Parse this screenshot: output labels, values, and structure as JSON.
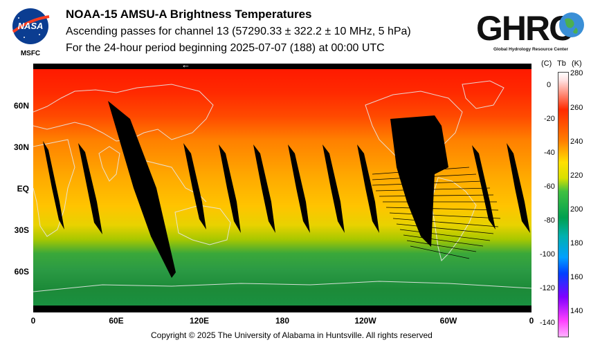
{
  "header": {
    "title": "NOAA-15 AMSU-A Brightness Temperatures",
    "subtitle": "Ascending passes for channel 13 (57290.33 ± 322.2 ± 10 MHz, 5 hPa)",
    "period": "For the 24-hour period beginning 2025-07-07 (188) at 00:00 UTC"
  },
  "logos": {
    "nasa_text": "NASA",
    "nasa_sub": "MSFC",
    "ghrc_text": "GHRC",
    "ghrc_sub": "Global Hydrology Resource Center"
  },
  "map": {
    "lat_labels": [
      "60N",
      "30N",
      "EQ",
      "30S",
      "60S"
    ],
    "lon_labels": [
      "0",
      "60E",
      "120E",
      "180",
      "120W",
      "60W",
      "0"
    ],
    "arrow": "←",
    "colors": {
      "hot": "#ff2200",
      "warm": "#ffcc00",
      "mid": "#2d9a2d",
      "cool": "#1f8a3a",
      "gap": "#000000"
    }
  },
  "colorbar": {
    "unit_c": "(C)",
    "unit_tb": "Tb",
    "unit_k": "(K)",
    "celsius_ticks": [
      "0",
      "-20",
      "-40",
      "-60",
      "-80",
      "-100",
      "-120",
      "-140"
    ],
    "kelvin_ticks": [
      "280",
      "260",
      "240",
      "220",
      "200",
      "180",
      "160",
      "140"
    ]
  },
  "footer": {
    "copyright": "Copyright © 2025 The University of Alabama in Huntsville.  All rights reserved"
  }
}
